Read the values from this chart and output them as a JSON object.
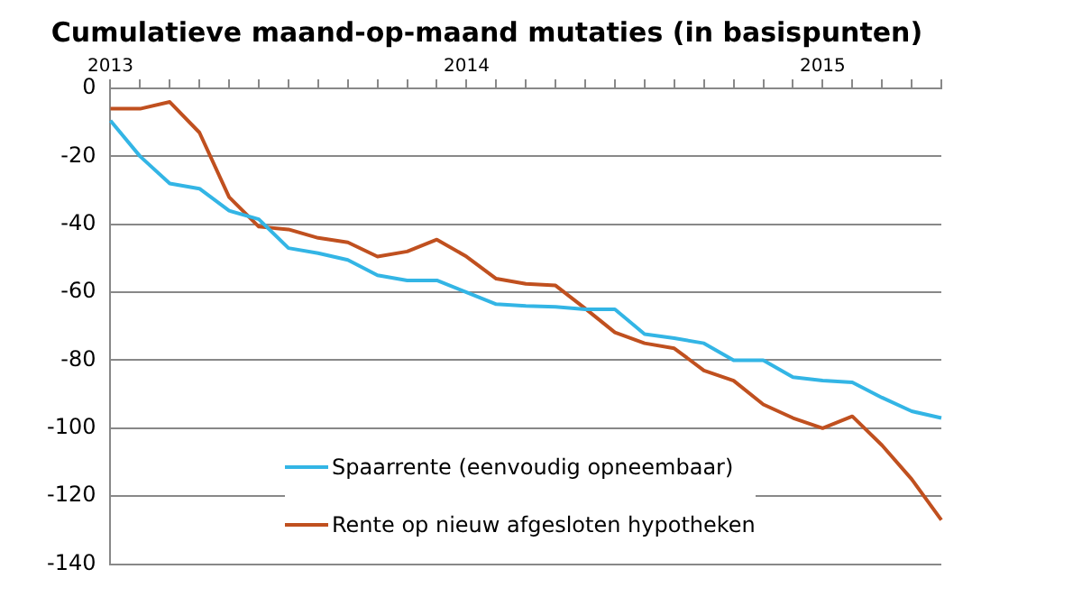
{
  "chart_data": {
    "type": "line",
    "title": "Cumulatieve maand-op-maand mutaties (in basispunten)",
    "categories": [
      "2013",
      null,
      null,
      null,
      null,
      null,
      null,
      null,
      null,
      null,
      null,
      null,
      "2014",
      null,
      null,
      null,
      null,
      null,
      null,
      null,
      null,
      null,
      null,
      null,
      "2015",
      null,
      null,
      null,
      null
    ],
    "series": [
      {
        "name": "Spaarrente (eenvoudig opneembaar)",
        "color": "#33b5e5",
        "values": [
          -9.5,
          -20,
          -28,
          -29.5,
          -36,
          -38.5,
          -47,
          -48.5,
          -50.5,
          -55,
          -56.5,
          -56.5,
          -60,
          -63.5,
          -64,
          -64.3,
          -65,
          -65,
          -72.3,
          -73.5,
          -75,
          -80,
          -80,
          -85,
          -86,
          -86.5,
          -91,
          -95,
          -97
        ]
      },
      {
        "name": "Rente op nieuw afgesloten hypotheken",
        "color": "#c0501f",
        "values": [
          -6,
          -6,
          -4,
          -13,
          -32,
          -40.7,
          -41.5,
          -44,
          -45.3,
          -49.5,
          -48,
          -44.5,
          -49.5,
          -56,
          -57.5,
          -58,
          -64.8,
          -71.8,
          -75,
          -76.5,
          -83,
          -86,
          -93,
          -97,
          -100,
          -96.5,
          -105,
          -115,
          -127
        ]
      }
    ],
    "ylim": [
      -140,
      0
    ],
    "yticks": [
      -140,
      -120,
      -100,
      -80,
      -60,
      -40,
      -20,
      0
    ],
    "grid": "y",
    "legend": "bottom left",
    "marker": "none",
    "line_style": "solid"
  }
}
